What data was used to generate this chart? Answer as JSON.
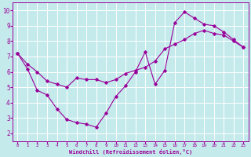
{
  "xlabel": "Windchill (Refroidissement éolien,°C)",
  "bg_color": "#c5eaec",
  "line_color": "#990099",
  "grid_color": "#ffffff",
  "xlim": [
    -0.5,
    23.5
  ],
  "ylim": [
    1.5,
    10.5
  ],
  "xticks": [
    0,
    1,
    2,
    3,
    4,
    5,
    6,
    7,
    8,
    9,
    10,
    11,
    12,
    13,
    14,
    15,
    16,
    17,
    18,
    19,
    20,
    21,
    22,
    23
  ],
  "yticks": [
    2,
    3,
    4,
    5,
    6,
    7,
    8,
    9,
    10
  ],
  "series1_x": [
    0,
    1,
    2,
    3,
    4,
    5,
    6,
    7,
    8,
    9,
    10,
    11,
    12,
    13,
    14,
    15,
    16,
    17,
    18,
    19,
    20,
    21,
    22,
    23
  ],
  "series1_y": [
    7.2,
    6.2,
    4.8,
    4.5,
    3.6,
    2.9,
    2.7,
    2.6,
    2.4,
    3.3,
    4.4,
    5.1,
    6.0,
    7.3,
    5.2,
    6.1,
    9.2,
    9.9,
    9.5,
    9.1,
    9.0,
    8.6,
    8.1,
    7.6
  ],
  "series2_x": [
    0,
    1,
    2,
    3,
    4,
    5,
    6,
    7,
    8,
    9,
    10,
    11,
    12,
    13,
    14,
    15,
    16,
    17,
    18,
    19,
    20,
    21,
    22,
    23
  ],
  "series2_y": [
    7.2,
    6.5,
    6.0,
    5.4,
    5.2,
    5.0,
    5.6,
    5.5,
    5.5,
    5.3,
    5.5,
    5.9,
    6.1,
    6.3,
    6.7,
    7.5,
    7.8,
    8.1,
    8.5,
    8.7,
    8.5,
    8.4,
    8.0,
    7.6
  ]
}
